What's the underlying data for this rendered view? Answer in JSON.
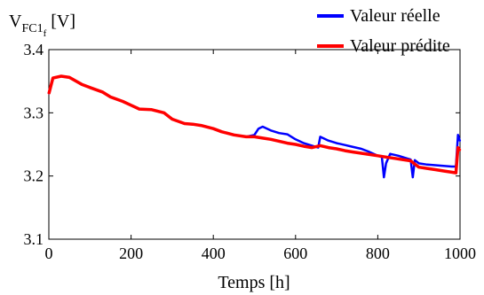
{
  "chart_data": {
    "type": "line",
    "ylabel": {
      "main": "V",
      "sub": "FC1",
      "subsub": "f",
      "unit": "[V]"
    },
    "xlabel": "Temps [h]",
    "xlim": [
      0,
      1000
    ],
    "ylim": [
      3.1,
      3.4
    ],
    "x_ticks": [
      0,
      200,
      400,
      600,
      800,
      1000
    ],
    "x_tick_labels": [
      "0",
      "200",
      "400",
      "600",
      "800",
      "1000"
    ],
    "y_ticks": [
      3.1,
      3.2,
      3.3,
      3.4
    ],
    "y_tick_labels": [
      "3.1",
      "3.2",
      "3.3",
      "3.4"
    ],
    "grid": false,
    "legend_position": "top-right",
    "series": [
      {
        "name": "Valeur réelle",
        "color": "#0000ff",
        "x": [
          0,
          10,
          30,
          50,
          80,
          100,
          130,
          150,
          180,
          200,
          220,
          250,
          280,
          300,
          330,
          350,
          370,
          400,
          420,
          450,
          480,
          500,
          510,
          520,
          540,
          560,
          580,
          600,
          620,
          640,
          655,
          660,
          680,
          700,
          720,
          740,
          760,
          780,
          800,
          810,
          815,
          820,
          830,
          850,
          870,
          880,
          885,
          890,
          900,
          920,
          940,
          960,
          980,
          990,
          995,
          1000
        ],
        "y": [
          3.33,
          3.355,
          3.358,
          3.356,
          3.345,
          3.34,
          3.333,
          3.325,
          3.318,
          3.312,
          3.306,
          3.305,
          3.3,
          3.29,
          3.283,
          3.282,
          3.28,
          3.275,
          3.27,
          3.265,
          3.262,
          3.265,
          3.275,
          3.278,
          3.272,
          3.268,
          3.266,
          3.258,
          3.252,
          3.248,
          3.245,
          3.262,
          3.256,
          3.252,
          3.249,
          3.246,
          3.243,
          3.238,
          3.232,
          3.23,
          3.198,
          3.22,
          3.235,
          3.232,
          3.228,
          3.226,
          3.198,
          3.225,
          3.22,
          3.218,
          3.217,
          3.216,
          3.215,
          3.215,
          3.265,
          3.255
        ]
      },
      {
        "name": "Valeur prédite",
        "color": "#ff0000",
        "x": [
          0,
          10,
          30,
          50,
          80,
          100,
          130,
          150,
          180,
          200,
          220,
          250,
          280,
          300,
          330,
          350,
          370,
          400,
          420,
          450,
          480,
          500,
          520,
          540,
          560,
          580,
          600,
          620,
          640,
          660,
          680,
          700,
          720,
          740,
          760,
          780,
          800,
          820,
          840,
          860,
          880,
          900,
          920,
          940,
          960,
          980,
          990,
          995,
          1000
        ],
        "y": [
          3.33,
          3.355,
          3.358,
          3.356,
          3.345,
          3.34,
          3.333,
          3.325,
          3.318,
          3.312,
          3.306,
          3.305,
          3.3,
          3.29,
          3.283,
          3.282,
          3.28,
          3.275,
          3.27,
          3.265,
          3.262,
          3.262,
          3.26,
          3.258,
          3.255,
          3.252,
          3.25,
          3.247,
          3.245,
          3.248,
          3.245,
          3.243,
          3.24,
          3.238,
          3.236,
          3.234,
          3.232,
          3.23,
          3.228,
          3.226,
          3.224,
          3.214,
          3.212,
          3.21,
          3.208,
          3.206,
          3.205,
          3.245,
          3.24
        ]
      }
    ]
  }
}
